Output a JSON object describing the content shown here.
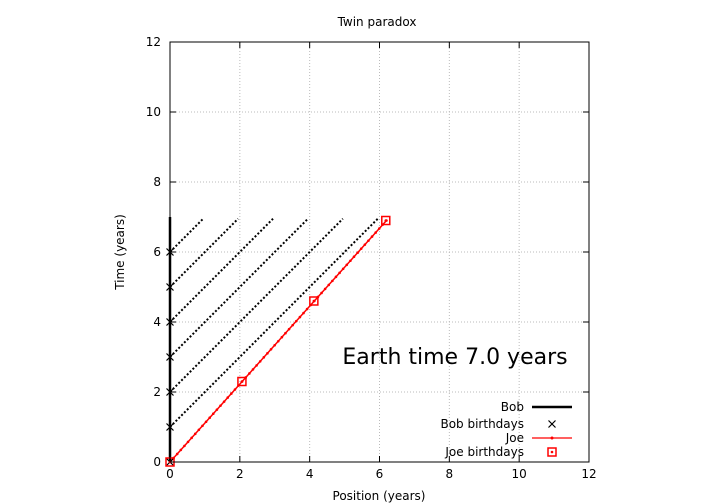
{
  "chart_data": {
    "type": "scatter",
    "title": "Twin paradox",
    "xlabel": "Position (years)",
    "ylabel": "Time (years)",
    "xlim": [
      0,
      12
    ],
    "ylim": [
      0,
      12
    ],
    "xticks": [
      0,
      2,
      4,
      6,
      8,
      10,
      12
    ],
    "yticks": [
      0,
      2,
      4,
      6,
      8,
      10,
      12
    ],
    "grid": true,
    "legend_position": "bottom-right",
    "annotation": "Earth time  7.0 years",
    "colors": {
      "bob": "#000000",
      "joe": "#ff0000",
      "grid": "#bbbbbb"
    },
    "series": [
      {
        "name": "Bob",
        "kind": "worldline",
        "x": [
          0,
          0
        ],
        "y": [
          0,
          7.0
        ]
      },
      {
        "name": "Bob birthdays",
        "kind": "marker",
        "x": [
          0,
          0,
          0,
          0,
          0,
          0,
          0
        ],
        "y": [
          0,
          1,
          2,
          3,
          4,
          5,
          6
        ]
      },
      {
        "name": "Joe",
        "kind": "worldline",
        "x": [
          0,
          6.2
        ],
        "y": [
          0,
          6.9
        ]
      },
      {
        "name": "Joe birthdays",
        "kind": "marker",
        "x": [
          0,
          2.06,
          4.12,
          6.18
        ],
        "y": [
          0,
          2.3,
          4.6,
          6.9
        ]
      }
    ],
    "light_signals": [
      {
        "from": [
          0,
          1
        ],
        "to": [
          5.95,
          6.95
        ]
      },
      {
        "from": [
          0,
          2
        ],
        "to": [
          4.95,
          6.95
        ]
      },
      {
        "from": [
          0,
          3
        ],
        "to": [
          3.95,
          6.95
        ]
      },
      {
        "from": [
          0,
          4
        ],
        "to": [
          2.95,
          6.95
        ]
      },
      {
        "from": [
          0,
          5
        ],
        "to": [
          1.95,
          6.95
        ]
      },
      {
        "from": [
          0,
          6
        ],
        "to": [
          0.95,
          6.95
        ]
      }
    ]
  }
}
